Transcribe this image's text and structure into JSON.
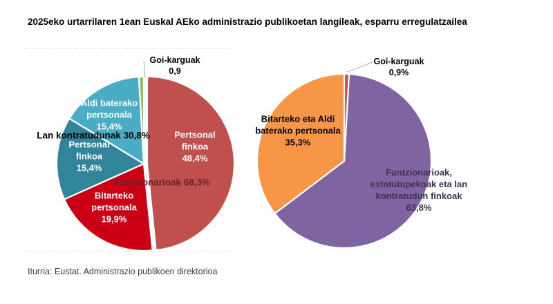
{
  "title": "2025eko urtarrilaren 1ean Euskal AEko administrazio publikoetan langileak, esparru erregulatzailea",
  "footer": "Iturria: Eustat. Administrazio publikoen direktorioa",
  "colors": {
    "salmon_red": "#C0504D",
    "bright_red": "#CC0014",
    "dark_teal": "#31859B",
    "light_blue": "#4BACC6",
    "green": "#9BBB59",
    "purple": "#8064A2",
    "orange": "#F79646",
    "maroon_text": "#632423",
    "dark_purple_text": "#3F3151",
    "leader_line": "#ABABAB"
  },
  "chart_data": [
    {
      "type": "pie",
      "position": "left",
      "units": "%",
      "start_angle_deg": 0,
      "direction": "clockwise-from-top",
      "slices": [
        {
          "name": "Pertsonal finkoa (Funtzionarioak)",
          "value": 48.4,
          "color": "#C0504D",
          "exploded": true,
          "display": "Pertsonal\nfinkoa\n48,4%"
        },
        {
          "name": "Bitarteko pertsonala (Funtzionarioak)",
          "value": 19.9,
          "color": "#CC0014",
          "exploded": false,
          "display": "Bitarteko\npertsonala\n19,9%"
        },
        {
          "name": "Pertsonal finkoa (Lan kontratudunak)",
          "value": 15.4,
          "color": "#31859B",
          "exploded": false,
          "display": "Pertsonal\nfinkoa\n15,4%"
        },
        {
          "name": "Aldi baterako pertsonala (Lan kontratudunak)",
          "value": 15.4,
          "color": "#4BACC6",
          "exploded": false,
          "display": "Aldi baterako\npertsonala\n15,4%"
        },
        {
          "name": "Goi-karguak",
          "value": 0.9,
          "color": "#9BBB59",
          "exploded": false,
          "display": "Goi-karguak\n0,9"
        }
      ],
      "group_labels": [
        {
          "text": "Funtzionarioak 68,3%",
          "color": "#632423"
        },
        {
          "text": "Lan kontratudunak 30,8%",
          "color": "#000000"
        }
      ]
    },
    {
      "type": "pie",
      "position": "right",
      "units": "%",
      "start_angle_deg": 0,
      "direction": "clockwise-from-top",
      "slices": [
        {
          "name": "Goi-karguak",
          "value": 0.9,
          "color": "#C0504D",
          "exploded": false,
          "display": "Goi-karguak\n0,9%",
          "label_color": "#000000"
        },
        {
          "name": "Funtzionarioak, estatutupekoak eta lan kontratudun finkoak",
          "value": 63.8,
          "color": "#8064A2",
          "exploded": false,
          "display": "Funtzionarioak,\nestatutupekoak eta lan\nkontratudun finkoak\n63,8%",
          "label_color": "#3F3151"
        },
        {
          "name": "Bitarteko eta Aldi baterako pertsonala",
          "value": 35.3,
          "color": "#F79646",
          "exploded": false,
          "display": "Bitarteko eta Aldi\nbaterako pertsonala\n35,3%",
          "label_color": "#000000"
        }
      ]
    }
  ]
}
